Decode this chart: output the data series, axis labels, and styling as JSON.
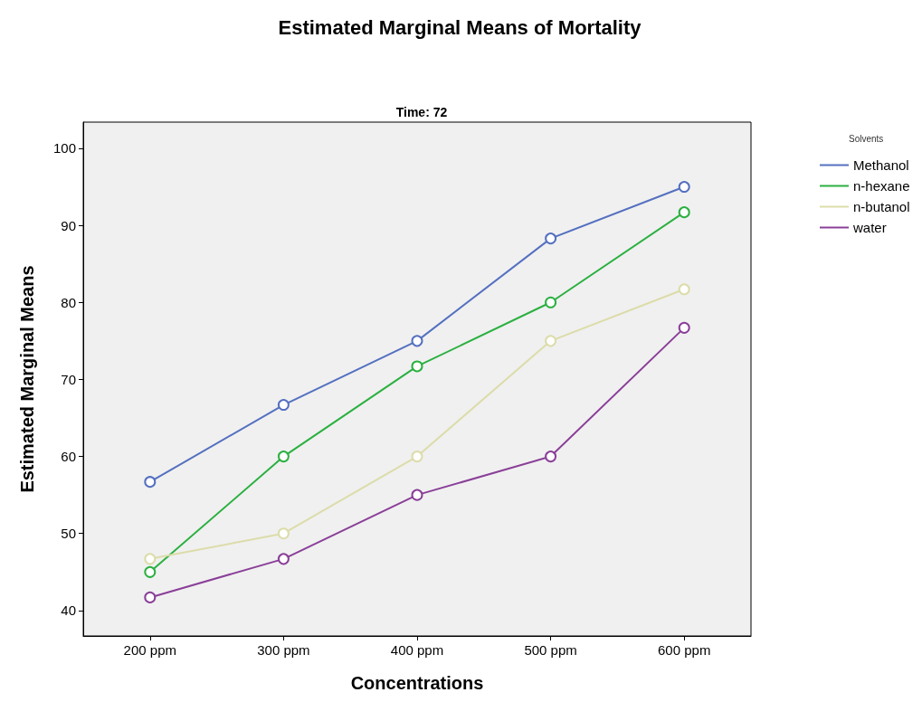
{
  "chart_data": {
    "type": "line",
    "title": "Estimated Marginal Means of Mortality",
    "subtitle": "Time: 72",
    "xlabel": "Concentrations",
    "ylabel": "Estimated Marginal Means",
    "legend_title": "Solvents",
    "categories": [
      "200 ppm",
      "300 ppm",
      "400 ppm",
      "500 ppm",
      "600 ppm"
    ],
    "series": [
      {
        "name": "Methanol",
        "color": "#5470c0",
        "values": [
          56.7,
          66.7,
          75,
          88.3,
          95
        ]
      },
      {
        "name": "n-hexane",
        "color": "#2bb040",
        "values": [
          45,
          60,
          71.7,
          80,
          91.7
        ]
      },
      {
        "name": "n-butanol",
        "color": "#dcdcaa",
        "values": [
          46.7,
          50,
          60,
          75,
          81.7
        ]
      },
      {
        "name": "water",
        "color": "#8a3f98",
        "values": [
          41.7,
          46.7,
          55,
          60,
          76.7
        ]
      }
    ],
    "ylim": [
      36.7,
      103.4
    ],
    "yticks": [
      40,
      50,
      60,
      70,
      80,
      90,
      100
    ],
    "grid": false,
    "legend": "right",
    "marker": "circle",
    "line_style": "solid"
  }
}
